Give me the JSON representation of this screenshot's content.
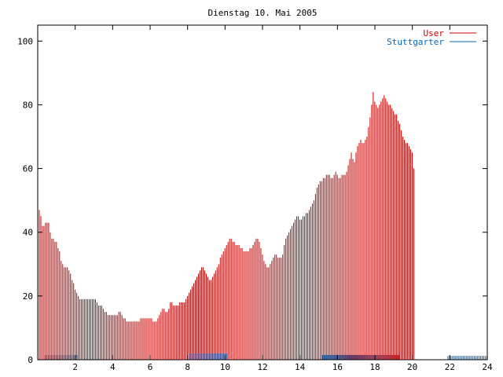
{
  "chart_data": {
    "type": "bar",
    "title": "Dienstag 10. Mai 2005",
    "xlabel": "",
    "ylabel": "",
    "xlim": [
      0,
      24
    ],
    "ylim": [
      0,
      105
    ],
    "x_ticks": [
      2,
      4,
      6,
      8,
      10,
      12,
      14,
      16,
      18,
      20,
      22,
      24
    ],
    "y_ticks": [
      0,
      20,
      40,
      60,
      80,
      100
    ],
    "grid": false,
    "legend_position": "top-right",
    "colors": {
      "User": "#cc0000",
      "Stuttgarter": "#0066bb"
    },
    "series": [
      {
        "name": "User",
        "style": "impulses",
        "interval_hours": 0.0833,
        "x_start": 0,
        "values": [
          49,
          47,
          45,
          42,
          42,
          43,
          43,
          43,
          40,
          38,
          38,
          37,
          37,
          35,
          34,
          31,
          30,
          29,
          29,
          29,
          28,
          27,
          25,
          24,
          22,
          21,
          20,
          19,
          19,
          19,
          19,
          19,
          19,
          19,
          19,
          19,
          19,
          19,
          18,
          17,
          17,
          17,
          16,
          15,
          15,
          14,
          14,
          14,
          14,
          14,
          14,
          14,
          15,
          15,
          14,
          13,
          13,
          12,
          12,
          12,
          12,
          12,
          12,
          12,
          12,
          12,
          13,
          13,
          13,
          13,
          13,
          13,
          13,
          13,
          12,
          12,
          12,
          13,
          14,
          15,
          16,
          16,
          15,
          15,
          16,
          18,
          18,
          17,
          17,
          17,
          17,
          18,
          18,
          18,
          18,
          19,
          20,
          21,
          22,
          23,
          24,
          25,
          26,
          27,
          28,
          29,
          29,
          28,
          27,
          26,
          25,
          25,
          26,
          27,
          28,
          29,
          30,
          32,
          33,
          34,
          35,
          36,
          37,
          38,
          38,
          37,
          37,
          36,
          36,
          36,
          35,
          35,
          34,
          34,
          34,
          34,
          35,
          35,
          36,
          37,
          38,
          38,
          37,
          35,
          33,
          31,
          30,
          29,
          29,
          30,
          31,
          32,
          33,
          33,
          32,
          32,
          32,
          33,
          36,
          38,
          39,
          40,
          41,
          42,
          43,
          44,
          45,
          45,
          44,
          44,
          45,
          45,
          46,
          46,
          47,
          48,
          49,
          50,
          52,
          54,
          55,
          56,
          56,
          57,
          57,
          58,
          58,
          58,
          57,
          57,
          58,
          59,
          58,
          57,
          57,
          58,
          58,
          58,
          59,
          61,
          63,
          65,
          63,
          62,
          65,
          67,
          68,
          69,
          68,
          68,
          69,
          70,
          73,
          76,
          80,
          84,
          81,
          80,
          79,
          80,
          81,
          82,
          83,
          82,
          81,
          80,
          80,
          79,
          78,
          77,
          77,
          75,
          74,
          72,
          70,
          69,
          68,
          68,
          67,
          66,
          65,
          60
        ]
      },
      {
        "name": "Stuttgarter",
        "style": "impulses",
        "interval_hours": 0.0833,
        "x_start": 0,
        "segments": [
          {
            "from": 0.4,
            "to": 2.2,
            "value": 1.5
          },
          {
            "from": 8.1,
            "to": 10.1,
            "value": 2
          },
          {
            "from": 15.2,
            "to": 19.3,
            "value": 1.5
          },
          {
            "from": 21.9,
            "to": 24,
            "value": 1.2
          }
        ]
      }
    ]
  }
}
